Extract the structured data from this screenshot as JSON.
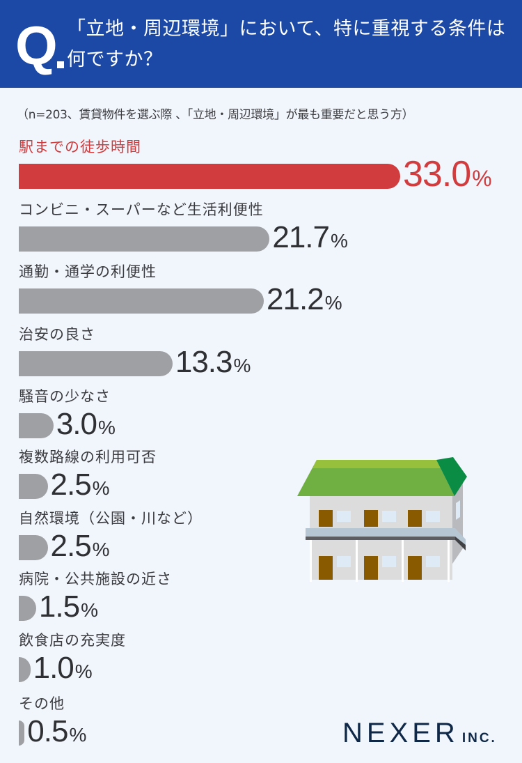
{
  "header": {
    "q_mark": "Q",
    "question": "「立地・周辺環境」において、特に重視する条件は何ですか？"
  },
  "note": "（n=203、賃貸物件を選ぶ際 、「立地・周辺環境」が最も重要だと思う方）",
  "colors": {
    "header_bg": "#1c49a6",
    "highlight": "#d13c3e",
    "bar_default": "#9fa0a4",
    "background": "#f1f5fc",
    "logo": "#0f2847"
  },
  "items": [
    {
      "label": "駅までの徒歩時間",
      "value": "33.0",
      "unit": "%"
    },
    {
      "label": "コンビニ・スーパーなど生活利便性",
      "value": "21.7",
      "unit": "%"
    },
    {
      "label": "通勤・通学の利便性",
      "value": "21.2",
      "unit": "%"
    },
    {
      "label": "治安の良さ",
      "value": "13.3",
      "unit": "%"
    },
    {
      "label": "騒音の少なさ",
      "value": "3.0",
      "unit": "%"
    },
    {
      "label": "複数路線の利用可否",
      "value": "2.5",
      "unit": "%"
    },
    {
      "label": "自然環境（公園・川など）",
      "value": "2.5",
      "unit": "%"
    },
    {
      "label": "病院・公共施設の近さ",
      "value": "1.5",
      "unit": "%"
    },
    {
      "label": "飲食店の充実度",
      "value": "1.0",
      "unit": "%"
    },
    {
      "label": "その他",
      "value": "0.5",
      "unit": "%"
    }
  ],
  "logo": {
    "main": "NEXER",
    "sub": "INC."
  },
  "chart_data": {
    "type": "bar",
    "orientation": "horizontal",
    "title": "「立地・周辺環境」において、特に重視する条件は何ですか？",
    "subtitle": "（n=203、賃貸物件を選ぶ際 、「立地・周辺環境」が最も重要だと思う方）",
    "categories": [
      "駅までの徒歩時間",
      "コンビニ・スーパーなど生活利便性",
      "通勤・通学の利便性",
      "治安の良さ",
      "騒音の少なさ",
      "複数路線の利用可否",
      "自然環境（公園・川など）",
      "病院・公共施設の近さ",
      "飲食店の充実度",
      "その他"
    ],
    "values": [
      33.0,
      21.7,
      21.2,
      13.3,
      3.0,
      2.5,
      2.5,
      1.5,
      1.0,
      0.5
    ],
    "unit": "%",
    "xlabel": "",
    "ylabel": "",
    "highlight_index": 0,
    "grid": false,
    "legend": "none"
  }
}
